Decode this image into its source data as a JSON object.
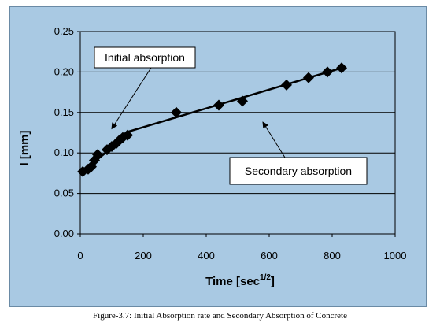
{
  "chart_data": {
    "type": "scatter",
    "title": "",
    "xlabel": "Time [sec",
    "xlabel_sup": "1/2",
    "xlabel_suffix": "]",
    "ylabel": "I [mm]",
    "xlim": [
      0,
      1000
    ],
    "ylim": [
      0,
      0.25
    ],
    "x_ticks": [
      "0",
      "200",
      "400",
      "600",
      "800",
      "1000"
    ],
    "y_ticks": [
      "0.00",
      "0.05",
      "0.10",
      "0.15",
      "0.20",
      "0.25"
    ],
    "grid": "horizontal",
    "marker": "diamond",
    "series": [
      {
        "x": [
          8,
          25,
          35,
          45,
          55,
          85,
          100,
          115,
          125,
          135,
          150,
          305,
          440,
          515,
          655,
          725,
          785,
          830
        ],
        "y": [
          0.077,
          0.08,
          0.083,
          0.091,
          0.098,
          0.104,
          0.108,
          0.112,
          0.116,
          0.119,
          0.122,
          0.15,
          0.159,
          0.164,
          0.184,
          0.193,
          0.2,
          0.205
        ]
      }
    ],
    "fit_lines": [
      {
        "x": [
          0,
          150
        ],
        "y": [
          0.075,
          0.122
        ]
      },
      {
        "x": [
          150,
          830
        ],
        "y": [
          0.126,
          0.205
        ]
      }
    ],
    "annotations": [
      {
        "text": "Initial absorption",
        "arrow_to": [
          100,
          0.13
        ]
      },
      {
        "text": "Secondary absorption",
        "arrow_to": [
          580,
          0.138
        ]
      }
    ],
    "colors": {
      "background": "#a9c9e3",
      "marker": "#000000",
      "grid": "#000000"
    }
  },
  "caption": "Figure-3.7: Initial Absorption rate and Secondary Absorption of Concrete"
}
